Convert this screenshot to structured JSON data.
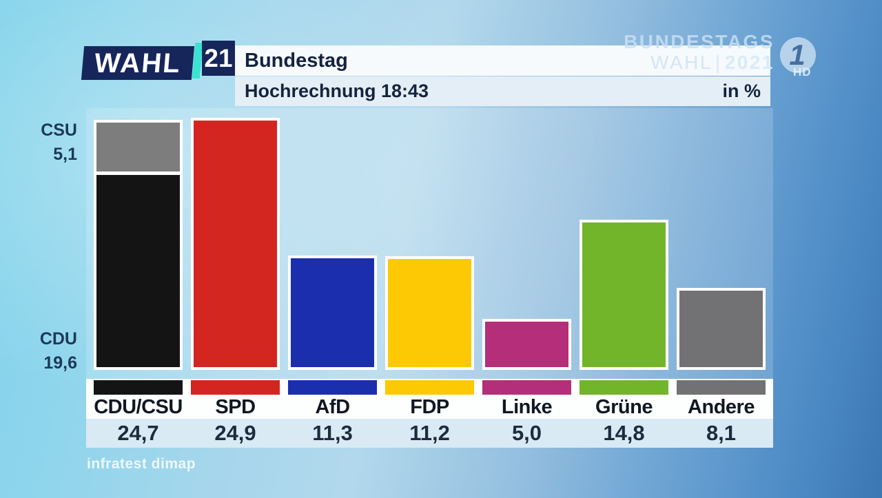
{
  "branding": {
    "wahl_logo_text": "WAHL",
    "wahl_logo_year": "21",
    "logo_navy": "#16265a",
    "accent_teal": "#39e3d2",
    "watermark_line1": "BUNDESTAGS",
    "watermark_wahl": "WAHL",
    "watermark_sep": "|",
    "watermark_year": "2021",
    "ard_numeral": "1",
    "hd_badge": "HD"
  },
  "header": {
    "title": "Bundestag",
    "subtitle": "Hochrechnung 18:43",
    "unit_label": "in %"
  },
  "annotations": {
    "csu": {
      "label": "CSU",
      "value": "5,1"
    },
    "cdu": {
      "label": "CDU",
      "value": "19,6"
    }
  },
  "chart_data": {
    "type": "bar",
    "title": "Bundestag — Hochrechnung 18:43",
    "unit": "%",
    "categories": [
      "CDU/CSU",
      "SPD",
      "AfD",
      "FDP",
      "Linke",
      "Grüne",
      "Andere"
    ],
    "values": [
      24.7,
      24.9,
      11.3,
      11.2,
      5.0,
      14.8,
      8.1
    ],
    "display_values": [
      "24,7",
      "24,9",
      "11,3",
      "11,2",
      "5,0",
      "14,8",
      "8,1"
    ],
    "bar_colors": [
      "#141414",
      "#d32621",
      "#1b2eae",
      "#fdc905",
      "#b52e79",
      "#72b52a",
      "#727274"
    ],
    "stacked_first_bar": {
      "category": "CDU/CSU",
      "segments": [
        {
          "label": "CSU",
          "value": 5.1,
          "display": "5,1",
          "color": "#7d7d7d"
        },
        {
          "label": "CDU",
          "value": 19.6,
          "display": "19,6",
          "color": "#141414"
        }
      ]
    },
    "ylim": [
      0,
      26
    ],
    "grid": false,
    "legend_position": "swatches below bars",
    "source": "infratest dimap"
  },
  "source": "infratest dimap"
}
